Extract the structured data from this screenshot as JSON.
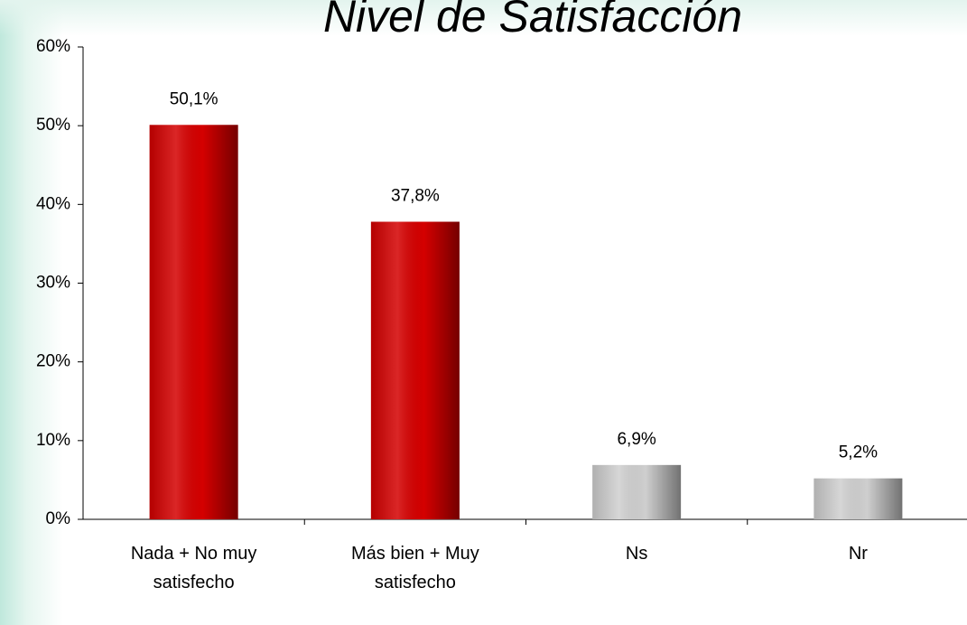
{
  "chart_data": {
    "type": "bar",
    "title": "Nivel de Satisfacción",
    "categories": [
      "Nada + No muy satisfecho",
      "Más bien + Muy satisfecho",
      "Ns",
      "Nr"
    ],
    "values": [
      50.1,
      37.8,
      6.9,
      5.2
    ],
    "value_labels": [
      "50,1%",
      "37,8%",
      "6,9%",
      "5,2%"
    ],
    "colors": [
      "#d40000",
      "#d40000",
      "#cfcfcf",
      "#cfcfcf"
    ],
    "ylim": [
      0,
      60
    ],
    "yticks": [
      {
        "value": 0,
        "label": "0%"
      },
      {
        "value": 10,
        "label": "10%"
      },
      {
        "value": 20,
        "label": "20%"
      },
      {
        "value": 30,
        "label": "30%"
      },
      {
        "value": 40,
        "label": "40%"
      },
      {
        "value": 50,
        "label": "50%"
      },
      {
        "value": 60,
        "label": "60%"
      }
    ],
    "grid": false
  }
}
